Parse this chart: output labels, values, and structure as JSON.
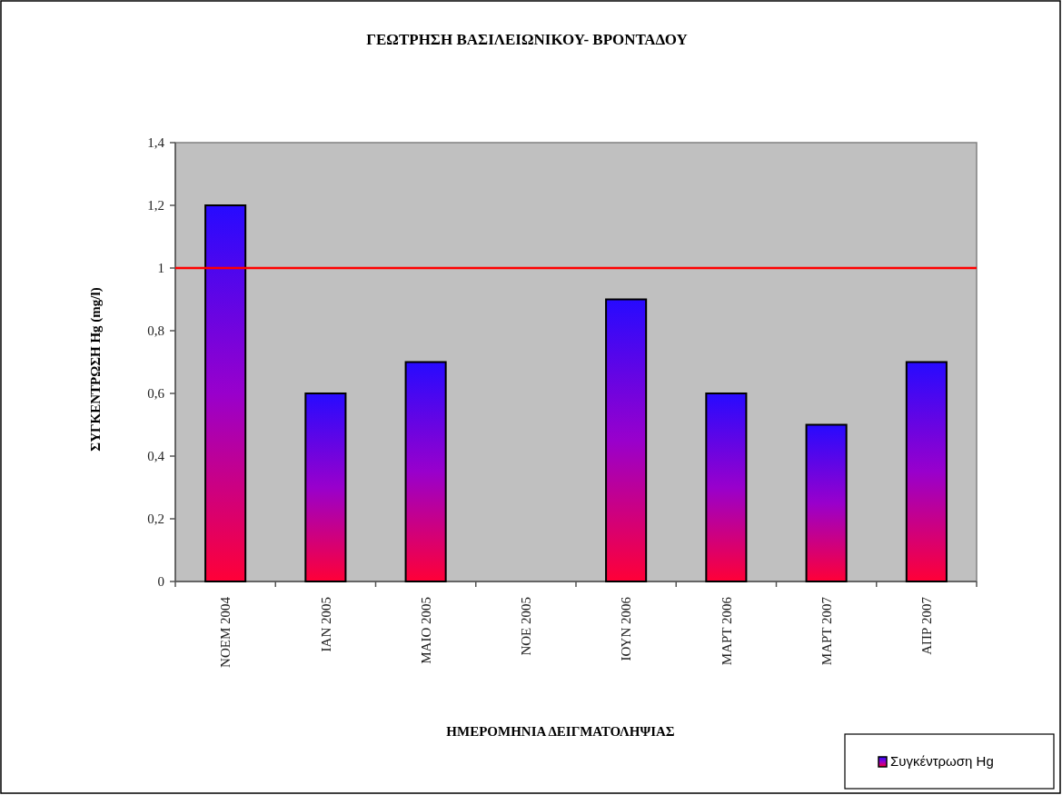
{
  "chart_data": {
    "type": "bar",
    "title": "ΓΕΩΤΡΗΣΗ ΒΑΣΙΛΕΙΩΝΙΚΟΥ- ΒΡΟΝΤΑΔΟΥ",
    "xlabel": "ΗΜΕΡΟΜΗΝΙΑ ΔΕΙΓΜΑΤΟΛΗΨΙΑΣ",
    "ylabel": "ΣΥΓΚΕΝΤΡΩΣΗ Hg (mg/l)",
    "categories": [
      "ΝΟΕΜ 2004",
      "ΙΑΝ 2005",
      "ΜΑΙΟ 2005",
      "ΝΟΕ 2005",
      "ΙΟΥΝ 2006",
      "ΜΑΡΤ 2006",
      "ΜΑΡΤ 2007",
      "ΑΠΡ 2007"
    ],
    "series": [
      {
        "name": "Συγκέντρωση Hg",
        "color": "#9900cc",
        "values": [
          1.2,
          0.6,
          0.7,
          null,
          0.9,
          0.6,
          0.5,
          0.7
        ]
      }
    ],
    "ylim": [
      0,
      1.4
    ],
    "yticks": [
      0,
      {
        "value": 0.2,
        "label": "0,2"
      },
      {
        "value": 0.4,
        "label": "0,4"
      },
      {
        "value": 0.6,
        "label": "0,6"
      },
      {
        "value": 0.8,
        "label": "0,8"
      },
      1,
      {
        "value": 1.2,
        "label": "1,2"
      },
      {
        "value": 1.4,
        "label": "1,4"
      }
    ],
    "ref_lines": [
      {
        "axis": "y",
        "value": 1,
        "color": "#ff0000"
      }
    ],
    "legend": "bottom right"
  }
}
